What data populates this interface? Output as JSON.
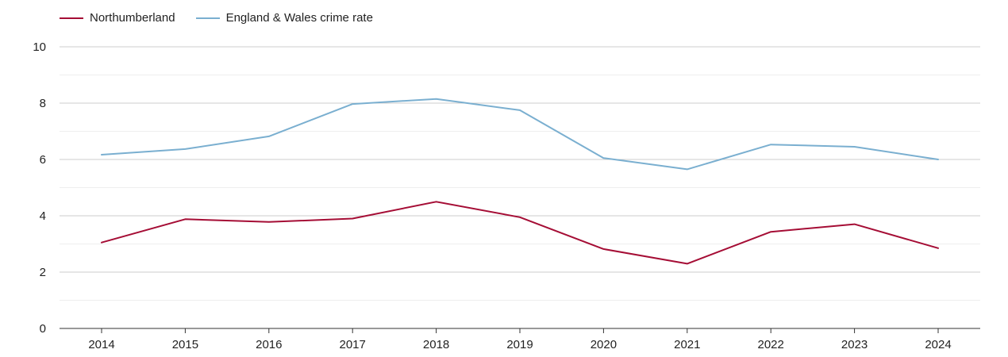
{
  "chart_data": {
    "type": "line",
    "title": "",
    "xlabel": "",
    "ylabel": "",
    "x": [
      "2014",
      "2015",
      "2016",
      "2017",
      "2018",
      "2019",
      "2020",
      "2021",
      "2022",
      "2023",
      "2024"
    ],
    "ylim": [
      0,
      10
    ],
    "yticks": [
      "0",
      "2",
      "4",
      "6",
      "8",
      "10"
    ],
    "grid": true,
    "legend_position": "top-left",
    "series": [
      {
        "name": "Northumberland",
        "color": "#a50d35",
        "values": [
          3.05,
          3.88,
          3.78,
          3.9,
          4.5,
          3.95,
          2.82,
          2.3,
          3.43,
          3.7,
          2.85
        ]
      },
      {
        "name": "England & Wales crime rate",
        "color": "#7aafd0",
        "values": [
          6.17,
          6.37,
          6.82,
          7.97,
          8.15,
          7.75,
          6.05,
          5.65,
          6.53,
          6.45,
          6.0
        ]
      }
    ]
  }
}
